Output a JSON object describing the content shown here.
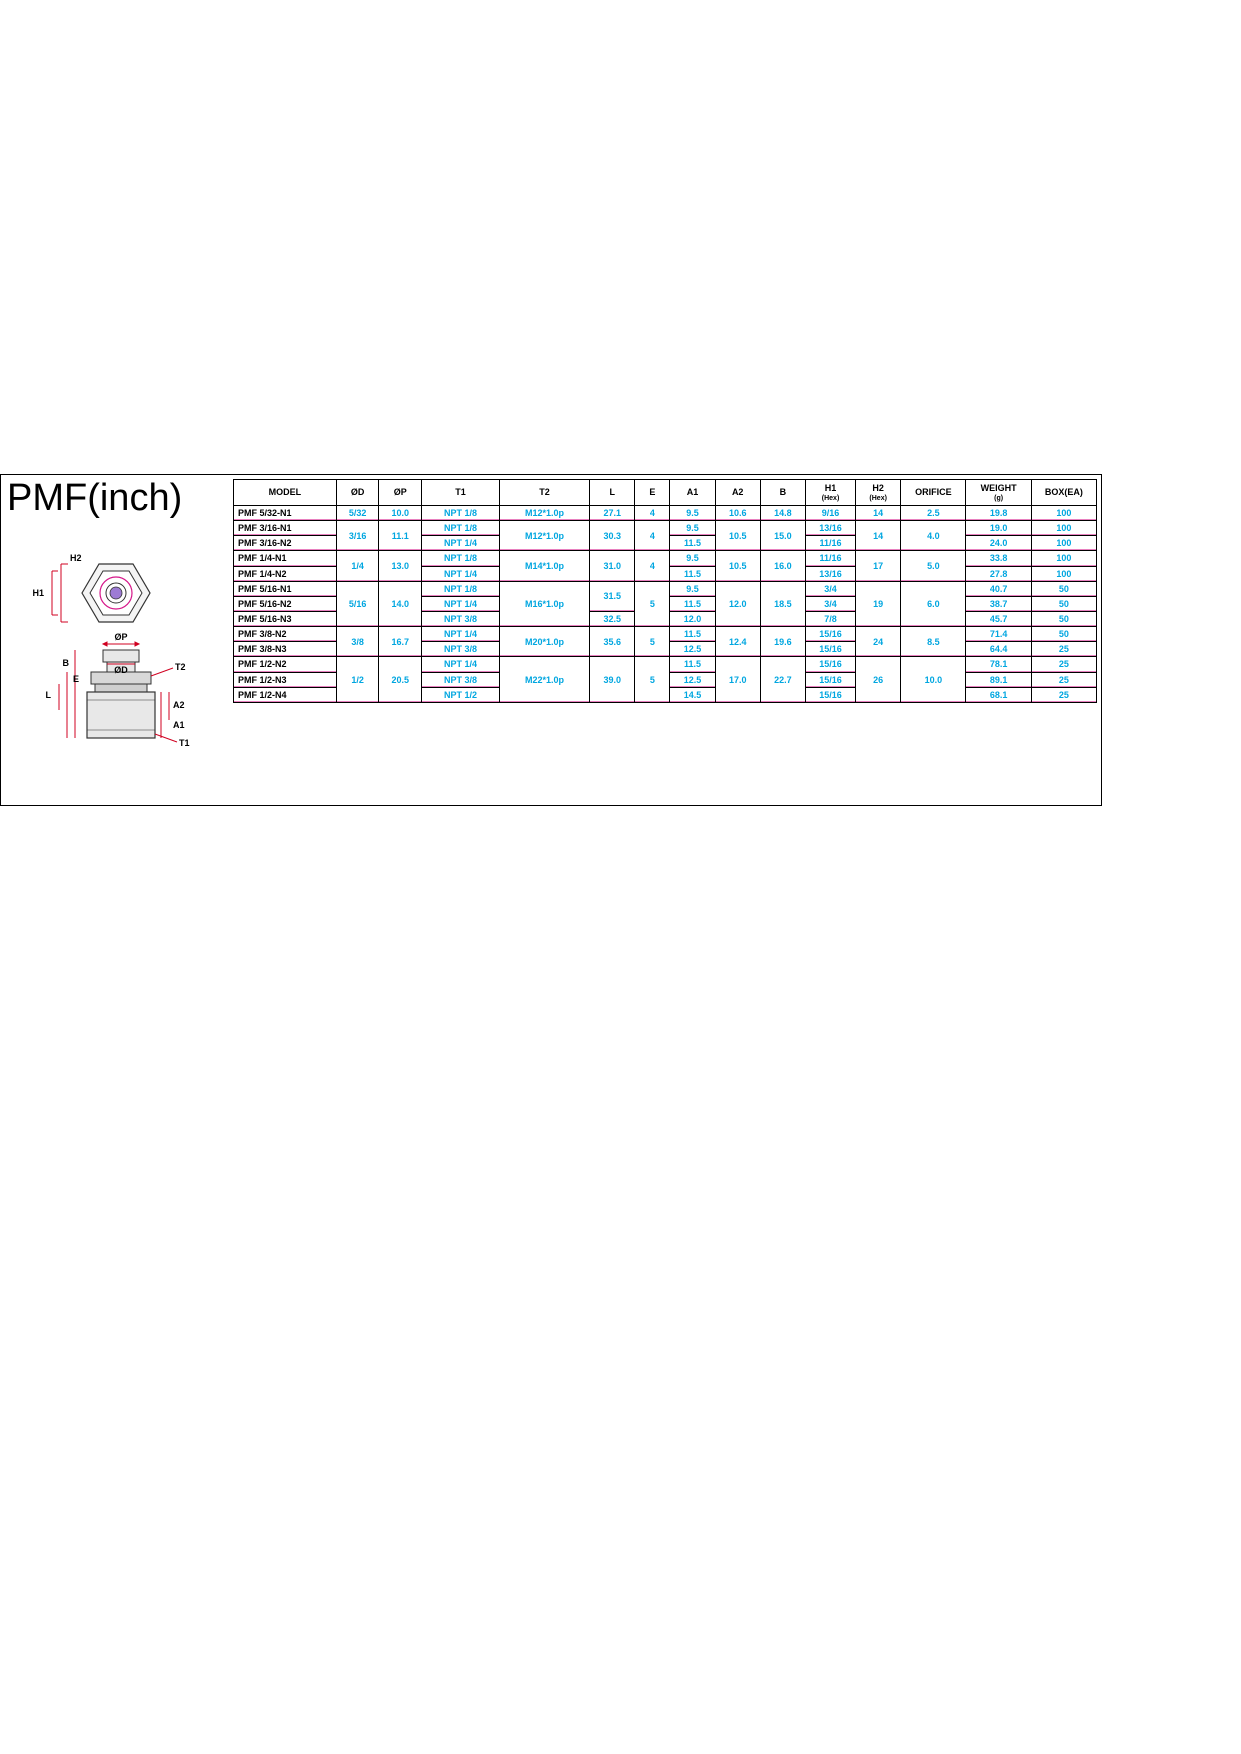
{
  "title": "PMF(inch)",
  "diagram": {
    "labels": {
      "H1": "H1",
      "H2": "H2",
      "OP": "ØP",
      "OD": "ØD",
      "T2": "T2",
      "T1": "T1",
      "A1": "A1",
      "A2": "A2",
      "B": "B",
      "E": "E",
      "L": "L"
    },
    "colors": {
      "dim": "#d00020",
      "alt": "#d6178a",
      "part_outline": "#333333",
      "part_fill": "#eeeeee",
      "hex_fill": "#ffffff"
    }
  },
  "table": {
    "headers": [
      "MODEL",
      "ØD",
      "ØP",
      "T1",
      "T2",
      "L",
      "E",
      "A1",
      "A2",
      "B",
      "H1|(Hex)",
      "H2|(Hex)",
      "ORIFICE",
      "WEIGHT|(g)",
      "BOX(EA)"
    ],
    "value_color": "#00a6e0",
    "accent_color": "#d6178a",
    "header_color": "#000000",
    "rows": [
      {
        "model": "PMF 5/32-N1",
        "od": "5/32",
        "op": "10.0",
        "t1": "NPT 1/8",
        "t2": "M12*1.0p",
        "l": "27.1",
        "e": "4",
        "a1": "9.5",
        "a2": "10.6",
        "b": "14.8",
        "h1": "9/16",
        "h2": "14",
        "orifice": "2.5",
        "weight": "19.8",
        "box": "100"
      },
      {
        "model": "PMF 3/16-N1",
        "od": "3/16",
        "op": "11.1",
        "t1": "NPT 1/8",
        "t2": "M12*1.0p",
        "l": "30.3",
        "e": "4",
        "a1": "9.5",
        "a2": "10.5",
        "b": "15.0",
        "h1": "13/16",
        "h2": "14",
        "orifice": "4.0",
        "weight": "19.0",
        "box": "100"
      },
      {
        "model": "PMF 3/16-N2",
        "od": "",
        "op": "",
        "t1": "NPT 1/4",
        "t2": "",
        "l": "",
        "e": "",
        "a1": "11.5",
        "a2": "",
        "b": "",
        "h1": "11/16",
        "h2": "",
        "orifice": "",
        "weight": "24.0",
        "box": "100"
      },
      {
        "model": "PMF 1/4-N1",
        "od": "1/4",
        "op": "13.0",
        "t1": "NPT 1/8",
        "t2": "M14*1.0p",
        "l": "31.0",
        "e": "4",
        "a1": "9.5",
        "a2": "10.5",
        "b": "16.0",
        "h1": "11/16",
        "h2": "17",
        "orifice": "5.0",
        "weight": "33.8",
        "box": "100"
      },
      {
        "model": "PMF 1/4-N2",
        "od": "",
        "op": "",
        "t1": "NPT 1/4",
        "t2": "",
        "l": "",
        "e": "",
        "a1": "11.5",
        "a2": "",
        "b": "",
        "h1": "13/16",
        "h2": "",
        "orifice": "",
        "weight": "27.8",
        "box": "100"
      },
      {
        "model": "PMF 5/16-N1",
        "od": "5/16",
        "op": "14.0",
        "t1": "NPT 1/8",
        "t2": "M16*1.0p",
        "l": "31.5",
        "e": "5",
        "a1": "9.5",
        "a2": "12.0",
        "b": "18.5",
        "h1": "3/4",
        "h2": "19",
        "orifice": "6.0",
        "weight": "40.7",
        "box": "50"
      },
      {
        "model": "PMF 5/16-N2",
        "od": "",
        "op": "",
        "t1": "NPT 1/4",
        "t2": "",
        "l": "",
        "e": "",
        "a1": "11.5",
        "a2": "",
        "b": "",
        "h1": "3/4",
        "h2": "",
        "orifice": "",
        "weight": "38.7",
        "box": "50"
      },
      {
        "model": "PMF 5/16-N3",
        "od": "",
        "op": "",
        "t1": "NPT 3/8",
        "t2": "",
        "l": "32.5",
        "e": "",
        "a1": "12.0",
        "a2": "",
        "b": "",
        "h1": "7/8",
        "h2": "",
        "orifice": "",
        "weight": "45.7",
        "box": "50"
      },
      {
        "model": "PMF 3/8-N2",
        "od": "3/8",
        "op": "16.7",
        "t1": "NPT 1/4",
        "t2": "M20*1.0p",
        "l": "35.6",
        "e": "5",
        "a1": "11.5",
        "a2": "12.4",
        "b": "19.6",
        "h1": "15/16",
        "h2": "24",
        "orifice": "8.5",
        "weight": "71.4",
        "box": "50"
      },
      {
        "model": "PMF 3/8-N3",
        "od": "",
        "op": "",
        "t1": "NPT 3/8",
        "t2": "",
        "l": "",
        "e": "",
        "a1": "12.5",
        "a2": "",
        "b": "",
        "h1": "15/16",
        "h2": "",
        "orifice": "",
        "weight": "64.4",
        "box": "25"
      },
      {
        "model": "PMF 1/2-N2",
        "od": "1/2",
        "op": "20.5",
        "t1": "NPT 1/4",
        "t2": "M22*1.0p",
        "l": "39.0",
        "e": "5",
        "a1": "11.5",
        "a2": "17.0",
        "b": "22.7",
        "h1": "15/16",
        "h2": "26",
        "orifice": "10.0",
        "weight": "78.1",
        "box": "25"
      },
      {
        "model": "PMF 1/2-N3",
        "od": "",
        "op": "",
        "t1": "NPT 3/8",
        "t2": "",
        "l": "",
        "e": "",
        "a1": "12.5",
        "a2": "",
        "b": "",
        "h1": "15/16",
        "h2": "",
        "orifice": "",
        "weight": "89.1",
        "box": "25"
      },
      {
        "model": "PMF 1/2-N4",
        "od": "",
        "op": "",
        "t1": "NPT 1/2",
        "t2": "",
        "l": "",
        "e": "",
        "a1": "14.5",
        "a2": "",
        "b": "",
        "h1": "15/16",
        "h2": "",
        "orifice": "",
        "weight": "68.1",
        "box": "25"
      }
    ],
    "rowspans": {
      "1": {
        "od": 2,
        "op": 2,
        "t2": 2,
        "l": 2,
        "e": 2,
        "a2": 2,
        "b": 2,
        "h2": 2,
        "orifice": 2
      },
      "3": {
        "od": 2,
        "op": 2,
        "t2": 2,
        "l": 2,
        "e": 2,
        "a2": 2,
        "b": 2,
        "h2": 2,
        "orifice": 2
      },
      "5": {
        "od": 3,
        "op": 3,
        "t2": 3,
        "e": 3,
        "a2": 3,
        "b": 3,
        "h2": 3,
        "orifice": 3,
        "l": 2
      },
      "8": {
        "od": 2,
        "op": 2,
        "t2": 2,
        "l": 2,
        "e": 2,
        "a2": 2,
        "b": 2,
        "h2": 2,
        "orifice": 2
      },
      "10": {
        "od": 3,
        "op": 3,
        "t2": 3,
        "l": 3,
        "e": 3,
        "a2": 3,
        "b": 3,
        "h2": 3,
        "orifice": 3
      }
    }
  }
}
